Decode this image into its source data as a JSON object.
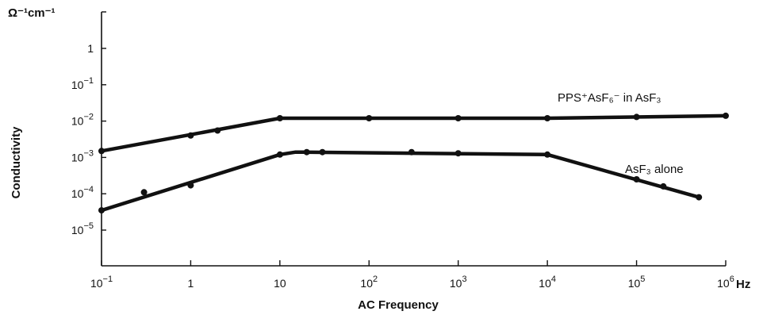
{
  "chart_data": {
    "type": "line",
    "xlabel": "AC Frequency",
    "ylabel": "Conductivity",
    "x_unit": "Hz",
    "y_unit": "Ω⁻¹cm⁻¹",
    "x_scale": "log",
    "y_scale": "log",
    "xlim": [
      0.1,
      1000000
    ],
    "ylim": [
      1e-06,
      10
    ],
    "grid": false,
    "x_ticks": [
      {
        "value": 0.1,
        "base": "10",
        "exp": "−1"
      },
      {
        "value": 1,
        "base": "1",
        "exp": ""
      },
      {
        "value": 10,
        "base": "10",
        "exp": ""
      },
      {
        "value": 100,
        "base": "10",
        "exp": "2"
      },
      {
        "value": 1000,
        "base": "10",
        "exp": "3"
      },
      {
        "value": 10000,
        "base": "10",
        "exp": "4"
      },
      {
        "value": 100000,
        "base": "10",
        "exp": "5"
      },
      {
        "value": 1000000,
        "base": "10",
        "exp": "6"
      }
    ],
    "y_ticks": [
      {
        "value": 1,
        "base": "1",
        "exp": ""
      },
      {
        "value": 0.1,
        "base": "10",
        "exp": "−1"
      },
      {
        "value": 0.01,
        "base": "10",
        "exp": "−2"
      },
      {
        "value": 0.001,
        "base": "10",
        "exp": "−3"
      },
      {
        "value": 0.0001,
        "base": "10",
        "exp": "−4"
      },
      {
        "value": 1e-05,
        "base": "10",
        "exp": "−5"
      }
    ],
    "series": [
      {
        "name": "PPS⁺AsF₆⁻ in AsF₃",
        "line": [
          [
            0.1,
            0.0015
          ],
          [
            10,
            0.012
          ],
          [
            10000,
            0.012
          ],
          [
            1000000,
            0.014
          ]
        ],
        "points": [
          [
            0.1,
            0.0015
          ],
          [
            1,
            0.004
          ],
          [
            2,
            0.0055
          ],
          [
            10,
            0.012
          ],
          [
            100,
            0.012
          ],
          [
            1000,
            0.012
          ],
          [
            10000,
            0.012
          ],
          [
            100000,
            0.013
          ],
          [
            1000000,
            0.014
          ]
        ]
      },
      {
        "name": "AsF₃ alone",
        "line": [
          [
            0.1,
            3.5e-05
          ],
          [
            10,
            0.0012
          ],
          [
            15,
            0.0014
          ],
          [
            10000,
            0.0012
          ],
          [
            500000,
            8e-05
          ]
        ],
        "points": [
          [
            0.1,
            3.5e-05
          ],
          [
            0.3,
            0.00011
          ],
          [
            1,
            0.00017
          ],
          [
            10,
            0.0012
          ],
          [
            20,
            0.0014
          ],
          [
            30,
            0.0014
          ],
          [
            300,
            0.0014
          ],
          [
            1000,
            0.0013
          ],
          [
            10000,
            0.0012
          ],
          [
            100000,
            0.00025
          ],
          [
            200000,
            0.00016
          ],
          [
            500000,
            8e-05
          ]
        ]
      }
    ]
  }
}
